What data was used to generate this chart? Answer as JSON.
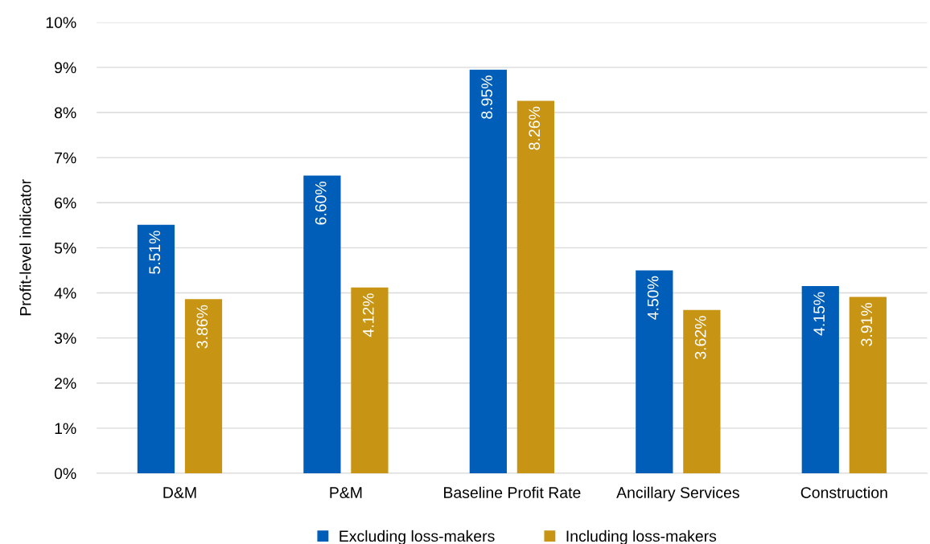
{
  "chart_data": {
    "type": "bar",
    "ylabel": "Profit-level indicator",
    "categories": [
      "D&M",
      "P&M",
      "Baseline Profit Rate",
      "Ancillary Services",
      "Construction"
    ],
    "series": [
      {
        "name": "Excluding loss-makers",
        "color": "#005eb8",
        "values": [
          5.51,
          6.6,
          8.95,
          4.5,
          4.15
        ],
        "value_labels": [
          "5.51%",
          "6.60%",
          "8.95%",
          "4.50%",
          "4.15%"
        ]
      },
      {
        "name": "Including loss-makers",
        "color": "#c89414",
        "values": [
          3.86,
          4.12,
          8.26,
          3.62,
          3.91
        ],
        "value_labels": [
          "3.86%",
          "4.12%",
          "8.26%",
          "3.62%",
          "3.91%"
        ]
      }
    ],
    "ylim": [
      0,
      10
    ],
    "yticks": [
      {
        "value": 0,
        "label": "0%"
      },
      {
        "value": 1,
        "label": "1%"
      },
      {
        "value": 2,
        "label": "2%"
      },
      {
        "value": 3,
        "label": "3%"
      },
      {
        "value": 4,
        "label": "4%"
      },
      {
        "value": 5,
        "label": "5%"
      },
      {
        "value": 6,
        "label": "6%"
      },
      {
        "value": 7,
        "label": "7%"
      },
      {
        "value": 8,
        "label": "8%"
      },
      {
        "value": 9,
        "label": "9%"
      },
      {
        "value": 10,
        "label": "10%"
      }
    ],
    "grid": "y",
    "legend": "bottom"
  }
}
